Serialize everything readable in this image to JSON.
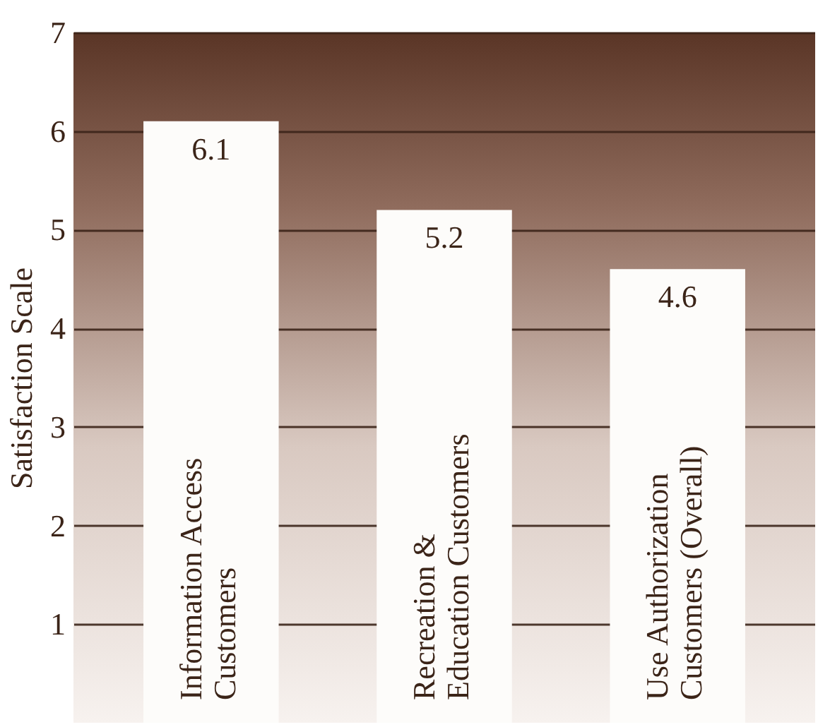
{
  "chart_data": {
    "type": "bar",
    "ylabel": "Satisfaction Scale",
    "categories": [
      "Information Access Customers",
      "Recreation & Education Customers",
      "Use Authorization Customers (Overall)"
    ],
    "values": [
      6.1,
      5.2,
      4.6
    ],
    "color": "#fdfcfa",
    "ylim": [
      0,
      7
    ],
    "yticks": [
      1,
      2,
      3,
      4,
      5,
      6,
      7
    ],
    "grid": "y",
    "data_labels": true
  }
}
